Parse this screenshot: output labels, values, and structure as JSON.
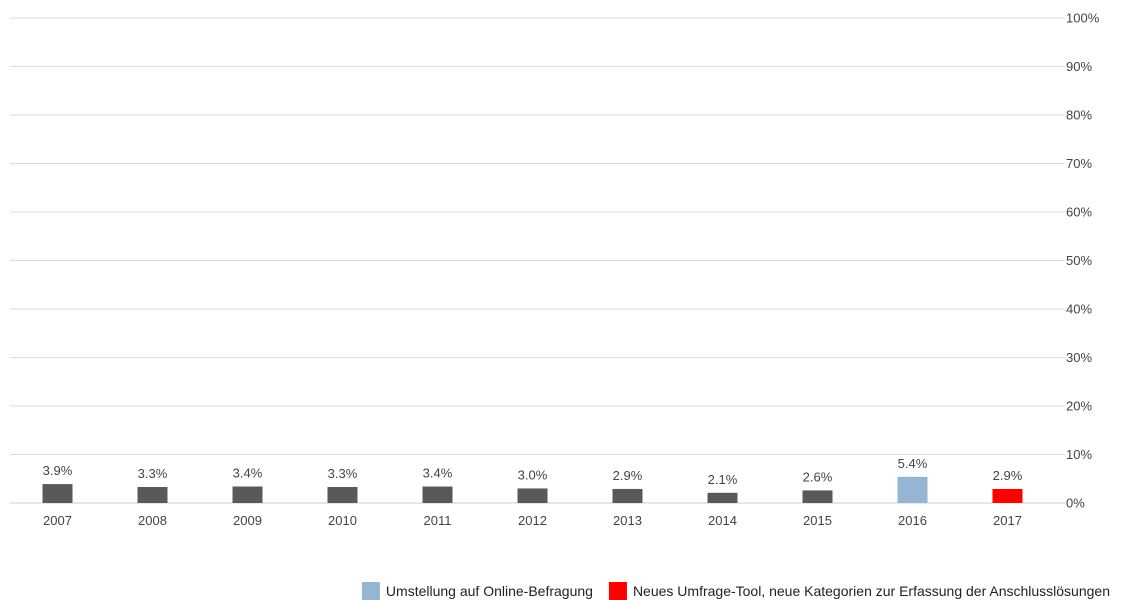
{
  "chart_data": {
    "type": "bar",
    "categories": [
      "2007",
      "2008",
      "2009",
      "2010",
      "2011",
      "2012",
      "2013",
      "2014",
      "2015",
      "2016",
      "2017"
    ],
    "values": [
      3.9,
      3.3,
      3.4,
      3.3,
      3.4,
      3.0,
      2.9,
      2.1,
      2.6,
      5.4,
      2.9
    ],
    "value_labels": [
      "3.9%",
      "3.3%",
      "3.4%",
      "3.3%",
      "3.4%",
      "3.0%",
      "2.9%",
      "2.1%",
      "2.6%",
      "5.4%",
      "2.9%"
    ],
    "bar_colors": [
      "#595959",
      "#595959",
      "#595959",
      "#595959",
      "#595959",
      "#595959",
      "#595959",
      "#595959",
      "#595959",
      "#94b6d2",
      "#ff0000"
    ],
    "ylim": [
      0,
      100
    ],
    "y_ticks": [
      0,
      10,
      20,
      30,
      40,
      50,
      60,
      70,
      80,
      90,
      100
    ],
    "y_tick_labels": [
      "0%",
      "10%",
      "20%",
      "30%",
      "40%",
      "50%",
      "60%",
      "70%",
      "80%",
      "90%",
      "100%"
    ],
    "y_axis_side": "right",
    "grid": true,
    "legend_position": "bottom-right",
    "legend": [
      {
        "label": "Umstellung auf Online-Befragung",
        "color": "#94b6d2"
      },
      {
        "label": "Neues Umfrage-Tool, neue Kategorien zur Erfassung der Anschlusslösungen",
        "color": "#ff0000"
      }
    ],
    "title": "",
    "xlabel": "",
    "ylabel": ""
  }
}
